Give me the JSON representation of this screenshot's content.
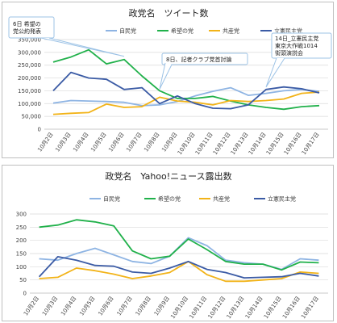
{
  "chart_data": [
    {
      "type": "line",
      "title": "政党名　ツイート数",
      "categories": [
        "10月2日",
        "10月3日",
        "10月4日",
        "10月5日",
        "10月6日",
        "10月7日",
        "10月8日",
        "10月9日",
        "10月10日",
        "10月11日",
        "10月12日",
        "10月13日",
        "10月14日",
        "10月15日",
        "10月16日",
        "10月17日"
      ],
      "ylim": [
        0,
        350000
      ],
      "yticks": [
        "0",
        "50,000",
        "100,000",
        "150,000",
        "200,000",
        "250,000",
        "300,000",
        "350,000"
      ],
      "ytick_values": [
        0,
        50000,
        100000,
        150000,
        200000,
        250000,
        300000,
        350000
      ],
      "grid": true,
      "legend": "top",
      "series": [
        {
          "name": "自民党",
          "color": "#8eb4e3",
          "values": [
            102000,
            112000,
            110000,
            108000,
            105000,
            92000,
            95000,
            108000,
            130000,
            148000,
            162000,
            132000,
            140000,
            150000,
            155000,
            148000
          ]
        },
        {
          "name": "希望の党",
          "color": "#21b14b",
          "values": [
            262000,
            282000,
            310000,
            255000,
            272000,
            208000,
            150000,
            120000,
            120000,
            128000,
            110000,
            95000,
            85000,
            78000,
            88000,
            92000
          ]
        },
        {
          "name": "共産党",
          "color": "#f2b318",
          "values": [
            58000,
            62000,
            65000,
            98000,
            85000,
            88000,
            125000,
            110000,
            105000,
            95000,
            112000,
            108000,
            112000,
            118000,
            140000,
            145000
          ]
        },
        {
          "name": "立憲民主党",
          "color": "#3b5ba5",
          "values": [
            150000,
            222000,
            200000,
            195000,
            155000,
            162000,
            100000,
            130000,
            100000,
            82000,
            80000,
            95000,
            155000,
            165000,
            158000,
            142000
          ]
        }
      ],
      "annotations": [
        {
          "text_lines": [
            "6日 希望の",
            "党公約発表"
          ]
        },
        {
          "text_lines": [
            "8日、記者クラブ党首討論"
          ]
        },
        {
          "text_lines": [
            "14日_立憲民主党",
            "東京大作戦1014",
            "街頭演説会"
          ]
        }
      ]
    },
    {
      "type": "line",
      "title": "政党名　Yahoo!ニュース露出数",
      "categories": [
        "10月2日",
        "10月3日",
        "10月4日",
        "10月5日",
        "10月6日",
        "10月7日",
        "10月8日",
        "10月9日",
        "10月10日",
        "10月11日",
        "10月12日",
        "10月13日",
        "10月14日",
        "10月15日",
        "10月16日",
        "10月17日"
      ],
      "ylim": [
        0,
        300
      ],
      "yticks": [
        "0",
        "50",
        "100",
        "150",
        "200",
        "250",
        "300"
      ],
      "ytick_values": [
        0,
        50,
        100,
        150,
        200,
        250,
        300
      ],
      "grid": true,
      "legend": "top",
      "series": [
        {
          "name": "自民党",
          "color": "#8eb4e3",
          "values": [
            130,
            125,
            150,
            170,
            145,
            120,
            112,
            140,
            210,
            180,
            125,
            115,
            110,
            90,
            130,
            125
          ]
        },
        {
          "name": "希望の党",
          "color": "#21b14b",
          "values": [
            250,
            258,
            278,
            270,
            255,
            160,
            130,
            140,
            205,
            165,
            120,
            110,
            110,
            88,
            118,
            115
          ]
        },
        {
          "name": "共産党",
          "color": "#f2b318",
          "values": [
            55,
            60,
            95,
            85,
            72,
            55,
            65,
            78,
            120,
            70,
            45,
            45,
            50,
            55,
            80,
            75
          ]
        },
        {
          "name": "立憲民主党",
          "color": "#3b5ba5",
          "values": [
            62,
            138,
            125,
            105,
            102,
            80,
            75,
            95,
            120,
            90,
            78,
            58,
            60,
            62,
            75,
            65
          ]
        }
      ]
    }
  ]
}
